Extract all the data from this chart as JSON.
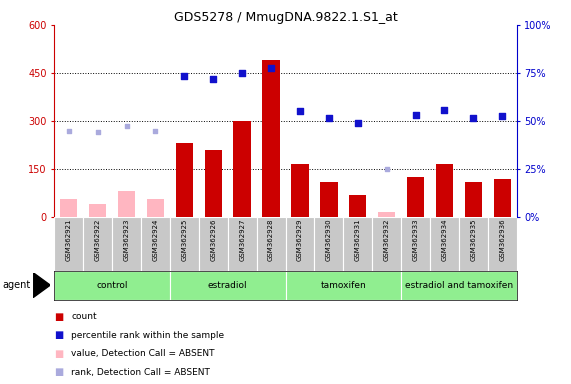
{
  "title": "GDS5278 / MmugDNA.9822.1.S1_at",
  "samples": [
    "GSM362921",
    "GSM362922",
    "GSM362923",
    "GSM362924",
    "GSM362925",
    "GSM362926",
    "GSM362927",
    "GSM362928",
    "GSM362929",
    "GSM362930",
    "GSM362931",
    "GSM362932",
    "GSM362933",
    "GSM362934",
    "GSM362935",
    "GSM362936"
  ],
  "bar_values_present": [
    null,
    null,
    null,
    null,
    230,
    210,
    300,
    490,
    165,
    110,
    70,
    null,
    125,
    165,
    110,
    120
  ],
  "bar_values_absent": [
    55,
    40,
    80,
    55,
    null,
    null,
    null,
    null,
    null,
    null,
    null,
    15,
    null,
    null,
    null,
    null
  ],
  "rank_present_left": [
    null,
    null,
    null,
    null,
    440,
    430,
    450,
    465,
    330,
    310,
    295,
    null,
    320,
    335,
    310,
    315
  ],
  "rank_absent_left": [
    270,
    265,
    285,
    270,
    null,
    null,
    null,
    null,
    null,
    null,
    null,
    150,
    null,
    null,
    null,
    null
  ],
  "ylim_left": [
    0,
    600
  ],
  "ylim_right": [
    0,
    100
  ],
  "yticks_left": [
    0,
    150,
    300,
    450,
    600
  ],
  "yticks_right": [
    0,
    25,
    50,
    75,
    100
  ],
  "ytick_labels_left": [
    "0",
    "150",
    "300",
    "450",
    "600"
  ],
  "ytick_labels_right": [
    "0%",
    "25%",
    "50%",
    "75%",
    "100%"
  ],
  "hlines": [
    150,
    300,
    450
  ],
  "groups": [
    {
      "label": "control",
      "start": 0,
      "end": 4
    },
    {
      "label": "estradiol",
      "start": 4,
      "end": 8
    },
    {
      "label": "tamoxifen",
      "start": 8,
      "end": 12
    },
    {
      "label": "estradiol and tamoxifen",
      "start": 12,
      "end": 16
    }
  ],
  "group_color": "#90EE90",
  "sample_bg_color": "#C8C8C8",
  "bar_color_present": "#CC0000",
  "bar_color_absent": "#FFB6C1",
  "rank_color_present": "#1111CC",
  "rank_color_absent": "#AAAADD",
  "left_tick_color": "#CC0000",
  "right_tick_color": "#0000CC",
  "legend": [
    {
      "color": "#CC0000",
      "label": "count"
    },
    {
      "color": "#1111CC",
      "label": "percentile rank within the sample"
    },
    {
      "color": "#FFB6C1",
      "label": "value, Detection Call = ABSENT"
    },
    {
      "color": "#AAAADD",
      "label": "rank, Detection Call = ABSENT"
    }
  ],
  "agent_label": "agent"
}
